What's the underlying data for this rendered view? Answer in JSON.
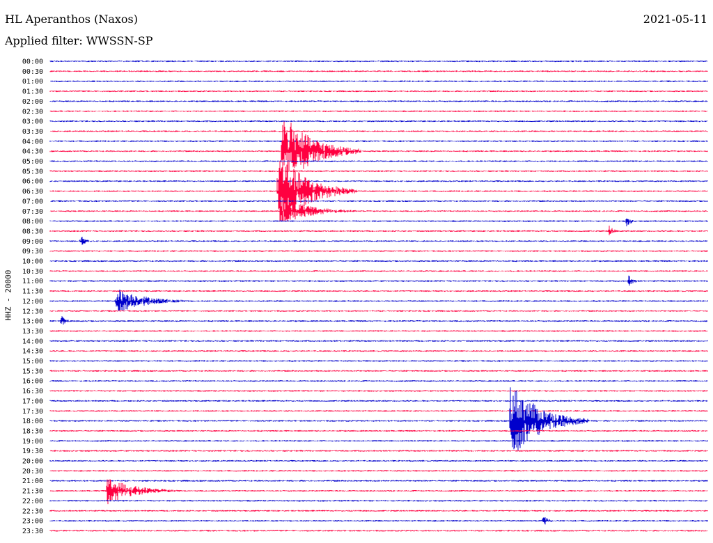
{
  "header": {
    "station": "HL Aperanthos (Naxos)",
    "filter": "Applied filter: WWSSN-SP",
    "date": "2021-05-11",
    "channel": "HHZ - 20000"
  },
  "chart_data": {
    "type": "line",
    "title": "HL Aperanthos (Naxos)",
    "subtitle": "Applied filter: WWSSN-SP",
    "ylabel": "HHZ - 20000",
    "xlabel": "",
    "colors": [
      "#0000cc",
      "#ff0040"
    ],
    "rows": [
      "00:00",
      "00:30",
      "01:00",
      "01:30",
      "02:00",
      "02:30",
      "03:00",
      "03:30",
      "04:00",
      "04:30",
      "05:00",
      "05:30",
      "06:00",
      "06:30",
      "07:00",
      "07:30",
      "08:00",
      "08:30",
      "09:00",
      "09:30",
      "10:00",
      "10:30",
      "11:00",
      "11:30",
      "12:00",
      "12:30",
      "13:00",
      "13:30",
      "14:00",
      "14:30",
      "15:00",
      "15:30",
      "16:00",
      "16:30",
      "17:00",
      "17:30",
      "18:00",
      "18:30",
      "19:00",
      "19:30",
      "20:00",
      "20:30",
      "21:00",
      "21:30",
      "22:00",
      "22:30",
      "23:00",
      "23:30"
    ],
    "events": [
      {
        "row": "04:30",
        "minute": 10.6,
        "magnitude": "large"
      },
      {
        "row": "06:30",
        "minute": 10.4,
        "magnitude": "large"
      },
      {
        "row": "07:30",
        "minute": 10.6,
        "magnitude": "medium"
      },
      {
        "row": "08:00",
        "minute": 26.3,
        "magnitude": "small"
      },
      {
        "row": "08:30",
        "minute": 25.5,
        "magnitude": "small"
      },
      {
        "row": "09:00",
        "minute": 1.4,
        "magnitude": "small"
      },
      {
        "row": "11:00",
        "minute": 26.4,
        "magnitude": "small"
      },
      {
        "row": "12:00",
        "minute": 3.0,
        "magnitude": "medium"
      },
      {
        "row": "13:00",
        "minute": 0.5,
        "magnitude": "small"
      },
      {
        "row": "18:00",
        "minute": 21.0,
        "magnitude": "large"
      },
      {
        "row": "21:30",
        "minute": 2.6,
        "magnitude": "medium"
      },
      {
        "row": "23:00",
        "minute": 22.5,
        "magnitude": "small"
      }
    ]
  }
}
